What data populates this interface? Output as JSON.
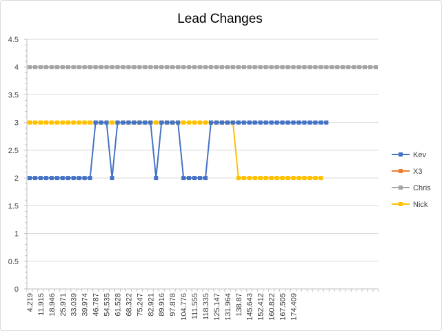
{
  "chart_data": {
    "type": "line",
    "title": "Lead Changes",
    "xlabel": "",
    "ylabel": "",
    "ylim": [
      0,
      4.5
    ],
    "yticks": [
      0,
      0.5,
      1,
      1.5,
      2,
      2.5,
      3,
      3.5,
      4,
      4.5
    ],
    "ytick_labels": [
      "0",
      "0.5",
      "1",
      "1.5",
      "2",
      "2.5",
      "3",
      "3.5",
      "4",
      "4.5"
    ],
    "x_category_count": 64,
    "xtick_labels": [
      "4.219",
      "11.915",
      "18.946",
      "25.971",
      "33.039",
      "39.974",
      "46.787",
      "54.535",
      "61.528",
      "68.322",
      "75.247",
      "82.921",
      "89.916",
      "97.878",
      "104.776",
      "111.555",
      "118.335",
      "125.147",
      "131.964",
      "138.87",
      "145.643",
      "152.412",
      "160.822",
      "167.505",
      "174.409"
    ],
    "grid": true,
    "legend_position": "right",
    "series": [
      {
        "name": "Kev",
        "color": "#4472c4",
        "values": [
          2,
          2,
          2,
          2,
          2,
          2,
          2,
          2,
          2,
          2,
          2,
          2,
          3,
          3,
          3,
          2,
          3,
          3,
          3,
          3,
          3,
          3,
          3,
          2,
          3,
          3,
          3,
          3,
          2,
          2,
          2,
          2,
          2,
          3,
          3,
          3,
          3,
          3,
          3,
          3,
          3,
          3,
          3,
          3,
          3,
          3,
          3,
          3,
          3,
          3,
          3,
          3,
          3,
          3,
          3
        ]
      },
      {
        "name": "X3",
        "color": "#ed7d31",
        "values": []
      },
      {
        "name": "Chris",
        "color": "#a5a5a5",
        "values": [
          4,
          4,
          4,
          4,
          4,
          4,
          4,
          4,
          4,
          4,
          4,
          4,
          4,
          4,
          4,
          4,
          4,
          4,
          4,
          4,
          4,
          4,
          4,
          4,
          4,
          4,
          4,
          4,
          4,
          4,
          4,
          4,
          4,
          4,
          4,
          4,
          4,
          4,
          4,
          4,
          4,
          4,
          4,
          4,
          4,
          4,
          4,
          4,
          4,
          4,
          4,
          4,
          4,
          4,
          4,
          4,
          4,
          4,
          4,
          4,
          4,
          4,
          4,
          4
        ]
      },
      {
        "name": "Nick",
        "color": "#ffc000",
        "values": [
          3,
          3,
          3,
          3,
          3,
          3,
          3,
          3,
          3,
          3,
          3,
          3,
          3,
          3,
          3,
          3,
          3,
          3,
          3,
          3,
          3,
          3,
          3,
          3,
          3,
          3,
          3,
          3,
          3,
          3,
          3,
          3,
          3,
          3,
          3,
          3,
          3,
          3,
          2,
          2,
          2,
          2,
          2,
          2,
          2,
          2,
          2,
          2,
          2,
          2,
          2,
          2,
          2,
          2
        ]
      }
    ]
  }
}
